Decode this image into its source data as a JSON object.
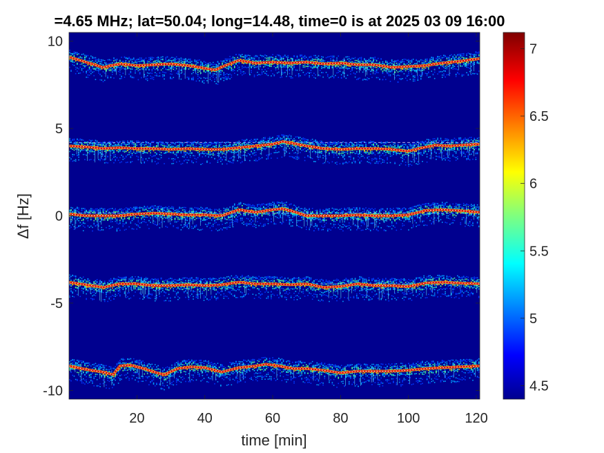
{
  "chart_data": {
    "type": "heatmap",
    "title": "=4.65 MHz;  lat=50.04; long=14.48, time=0 is at 2025 03 09 16:00",
    "xlabel": "time [min]",
    "ylabel": "Δf [Hz]",
    "xlim": [
      0,
      121
    ],
    "ylim": [
      -10.5,
      10.5
    ],
    "x_ticks": [
      20,
      40,
      60,
      80,
      100,
      120
    ],
    "x_tick_labels": [
      "20",
      "40",
      "60",
      "80",
      "100",
      "120"
    ],
    "y_ticks": [
      10,
      5,
      0,
      -5,
      -10
    ],
    "y_tick_labels": [
      "10",
      "5",
      "0",
      "-5",
      "-10"
    ],
    "colorbar": {
      "colormap": "jet",
      "clim": [
        4.4,
        7.12
      ],
      "ticks": [
        7,
        6.5,
        6,
        5.5,
        5,
        4.5
      ],
      "tick_labels": [
        "7",
        "6.5",
        "6",
        "5.5",
        "5",
        "4.5"
      ]
    },
    "background_color": "#00008f",
    "dashed_reference_lines_hz": [
      4.2,
      0.15,
      -3.9
    ],
    "series": [
      {
        "center_hz": 9.0,
        "trace": [
          [
            0,
            9.1
          ],
          [
            5,
            8.8
          ],
          [
            10,
            8.5
          ],
          [
            15,
            8.7
          ],
          [
            20,
            8.6
          ],
          [
            25,
            8.65
          ],
          [
            30,
            8.7
          ],
          [
            35,
            8.6
          ],
          [
            40,
            8.45
          ],
          [
            43,
            8.35
          ],
          [
            46,
            8.6
          ],
          [
            50,
            8.9
          ],
          [
            55,
            8.75
          ],
          [
            60,
            8.8
          ],
          [
            65,
            8.75
          ],
          [
            70,
            8.8
          ],
          [
            75,
            8.7
          ],
          [
            80,
            8.75
          ],
          [
            85,
            8.65
          ],
          [
            90,
            8.65
          ],
          [
            95,
            8.5
          ],
          [
            100,
            8.55
          ],
          [
            105,
            8.6
          ],
          [
            110,
            8.75
          ],
          [
            115,
            8.85
          ],
          [
            121,
            9.0
          ]
        ]
      },
      {
        "center_hz": 4.0,
        "trace": [
          [
            0,
            4.0
          ],
          [
            5,
            3.95
          ],
          [
            10,
            3.85
          ],
          [
            15,
            3.9
          ],
          [
            20,
            3.85
          ],
          [
            25,
            3.85
          ],
          [
            30,
            3.8
          ],
          [
            35,
            3.85
          ],
          [
            40,
            3.8
          ],
          [
            45,
            3.8
          ],
          [
            50,
            3.9
          ],
          [
            55,
            4.0
          ],
          [
            60,
            4.1
          ],
          [
            63,
            4.25
          ],
          [
            66,
            4.15
          ],
          [
            70,
            4.0
          ],
          [
            75,
            3.85
          ],
          [
            80,
            3.8
          ],
          [
            85,
            3.85
          ],
          [
            90,
            3.85
          ],
          [
            95,
            3.8
          ],
          [
            100,
            3.7
          ],
          [
            103,
            3.85
          ],
          [
            108,
            4.05
          ],
          [
            112,
            4.0
          ],
          [
            116,
            4.05
          ],
          [
            121,
            4.1
          ]
        ]
      },
      {
        "center_hz": 0.0,
        "trace": [
          [
            0,
            0.1
          ],
          [
            5,
            0.0
          ],
          [
            10,
            0.0
          ],
          [
            15,
            0.0
          ],
          [
            20,
            0.1
          ],
          [
            25,
            0.15
          ],
          [
            30,
            0.1
          ],
          [
            35,
            0.05
          ],
          [
            40,
            0.05
          ],
          [
            45,
            0.0
          ],
          [
            50,
            0.35
          ],
          [
            55,
            0.2
          ],
          [
            60,
            0.35
          ],
          [
            63,
            0.4
          ],
          [
            66,
            0.25
          ],
          [
            70,
            0.0
          ],
          [
            75,
            0.0
          ],
          [
            80,
            0.0
          ],
          [
            85,
            0.05
          ],
          [
            90,
            0.0
          ],
          [
            95,
            0.0
          ],
          [
            100,
            0.05
          ],
          [
            105,
            0.3
          ],
          [
            110,
            0.35
          ],
          [
            115,
            0.3
          ],
          [
            121,
            0.2
          ]
        ]
      },
      {
        "center_hz": -4.0,
        "trace": [
          [
            0,
            -3.8
          ],
          [
            5,
            -3.95
          ],
          [
            10,
            -4.1
          ],
          [
            15,
            -3.9
          ],
          [
            20,
            -3.9
          ],
          [
            25,
            -4.0
          ],
          [
            30,
            -4.0
          ],
          [
            35,
            -3.95
          ],
          [
            40,
            -4.0
          ],
          [
            45,
            -3.95
          ],
          [
            50,
            -3.8
          ],
          [
            55,
            -3.9
          ],
          [
            60,
            -3.9
          ],
          [
            65,
            -3.95
          ],
          [
            70,
            -3.9
          ],
          [
            75,
            -4.1
          ],
          [
            80,
            -4.05
          ],
          [
            85,
            -3.9
          ],
          [
            90,
            -4.0
          ],
          [
            95,
            -4.0
          ],
          [
            100,
            -4.05
          ],
          [
            105,
            -3.85
          ],
          [
            110,
            -3.8
          ],
          [
            115,
            -3.85
          ],
          [
            121,
            -3.9
          ]
        ]
      },
      {
        "center_hz": -8.7,
        "trace": [
          [
            0,
            -8.6
          ],
          [
            5,
            -8.8
          ],
          [
            10,
            -8.95
          ],
          [
            13,
            -9.1
          ],
          [
            15,
            -8.6
          ],
          [
            18,
            -8.55
          ],
          [
            22,
            -8.75
          ],
          [
            26,
            -9.0
          ],
          [
            28,
            -9.1
          ],
          [
            32,
            -8.75
          ],
          [
            36,
            -8.65
          ],
          [
            40,
            -8.7
          ],
          [
            45,
            -8.95
          ],
          [
            50,
            -8.7
          ],
          [
            55,
            -8.6
          ],
          [
            58,
            -8.5
          ],
          [
            62,
            -8.6
          ],
          [
            66,
            -8.75
          ],
          [
            70,
            -8.75
          ],
          [
            75,
            -8.85
          ],
          [
            80,
            -9.0
          ],
          [
            85,
            -8.9
          ],
          [
            90,
            -8.9
          ],
          [
            95,
            -8.9
          ],
          [
            100,
            -8.85
          ],
          [
            105,
            -8.75
          ],
          [
            110,
            -8.7
          ],
          [
            115,
            -8.65
          ],
          [
            121,
            -8.6
          ]
        ]
      }
    ]
  }
}
